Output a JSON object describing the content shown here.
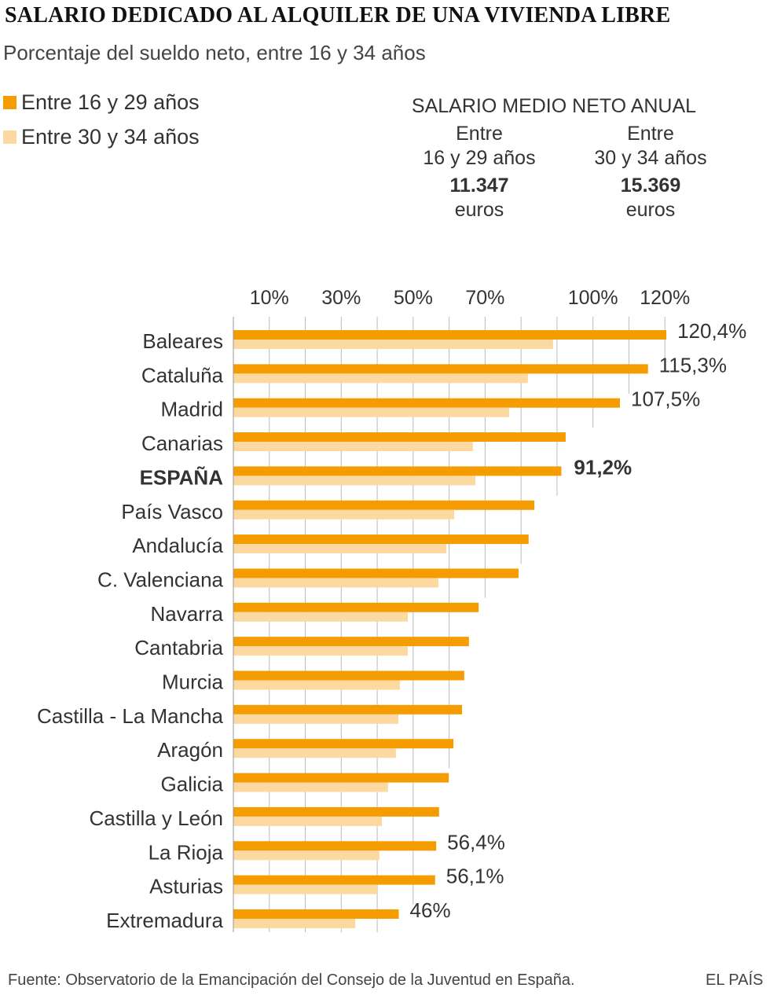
{
  "title": "SALARIO DEDICADO AL ALQUILER DE UNA VIVIENDA LIBRE",
  "subtitle": "Porcentaje del sueldo neto, entre 16 y 34 años",
  "legend": [
    {
      "label": "Entre 16 y 29 años",
      "color": "#f59c00"
    },
    {
      "label": "Entre 30 y 34 años",
      "color": "#fbd9a0"
    }
  ],
  "salary": {
    "heading": "SALARIO MEDIO NETO ANUAL",
    "groups": [
      {
        "line1": "Entre",
        "line2": "16 y 29 años",
        "value": "11.347",
        "unit": "euros"
      },
      {
        "line1": "Entre",
        "line2": "30 y 34 años",
        "value": "15.369",
        "unit": "euros"
      }
    ]
  },
  "chart_data": {
    "type": "bar",
    "orientation": "horizontal",
    "title": "SALARIO DEDICADO AL ALQUILER DE UNA VIVIENDA LIBRE",
    "xlim": [
      0,
      120
    ],
    "x_ticks": [
      10,
      30,
      50,
      70,
      100,
      120
    ],
    "x_tick_labels": [
      "10%",
      "30%",
      "50%",
      "70%",
      "100%",
      "120%"
    ],
    "grid_step": 10,
    "categories": [
      "Baleares",
      "Cataluña",
      "Madrid",
      "Canarias",
      "ESPAÑA",
      "País Vasco",
      "Andalucía",
      "C. Valenciana",
      "Navarra",
      "Cantabria",
      "Murcia",
      "Castilla - La Mancha",
      "Aragón",
      "Galicia",
      "Castilla y León",
      "La Rioja",
      "Asturias",
      "Extremadura"
    ],
    "highlight": "ESPAÑA",
    "series": [
      {
        "name": "Entre 16 y 29 años",
        "color": "#f59c00",
        "values": [
          120.4,
          115.3,
          107.5,
          92.4,
          91.2,
          83.7,
          82.1,
          79.3,
          68.2,
          65.5,
          64.2,
          63.6,
          61.2,
          59.9,
          57.2,
          56.4,
          56.1,
          46.0
        ]
      },
      {
        "name": "Entre 30 y 34 años",
        "color": "#fbd9a0",
        "values": [
          88.9,
          81.9,
          76.7,
          66.6,
          67.3,
          61.4,
          59.2,
          57.0,
          48.5,
          48.5,
          46.3,
          45.9,
          45.2,
          43.0,
          41.3,
          40.6,
          40.0,
          33.9
        ]
      }
    ],
    "data_labels": [
      "120,4%",
      "115,3%",
      "107,5%",
      "",
      "91,2%",
      "",
      "",
      "",
      "",
      "",
      "",
      "",
      "",
      "",
      "",
      "56,4%",
      "56,1%",
      "46%"
    ]
  },
  "source": "Fuente: Observatorio de la Emancipación del Consejo de la Juventud en España.",
  "brand": "EL PAÍS"
}
